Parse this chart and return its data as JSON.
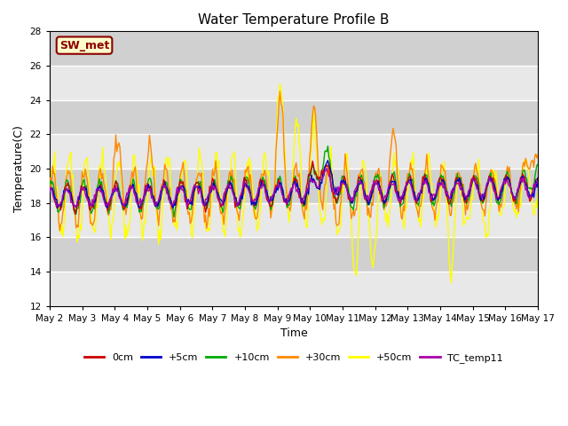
{
  "title": "Water Temperature Profile B",
  "xlabel": "Time",
  "ylabel": "Temperature(C)",
  "ylim": [
    12,
    28
  ],
  "yticks": [
    12,
    14,
    16,
    18,
    20,
    22,
    24,
    26,
    28
  ],
  "xtick_labels": [
    "May 2",
    "May 3",
    "May 4",
    "May 5",
    "May 6",
    "May 7",
    "May 8",
    "May 9",
    "May 10",
    "May 11",
    "May 12",
    "May 13",
    "May 14",
    "May 15",
    "May 16",
    "May 17"
  ],
  "annotation_text": "SW_met",
  "annotation_color": "#8B0000",
  "annotation_bg": "#FFFFCC",
  "series_colors": {
    "0cm": "#CC0000",
    "+5cm": "#0000CC",
    "+10cm": "#00AA00",
    "+30cm": "#FF8800",
    "+50cm": "#FFFF00",
    "TC_temp11": "#AA00AA"
  },
  "bg_color": "#E8E8E8",
  "band_color": "#D0D0D0",
  "grid_line_color": "#FFFFFF",
  "n_points": 480,
  "days": 15
}
